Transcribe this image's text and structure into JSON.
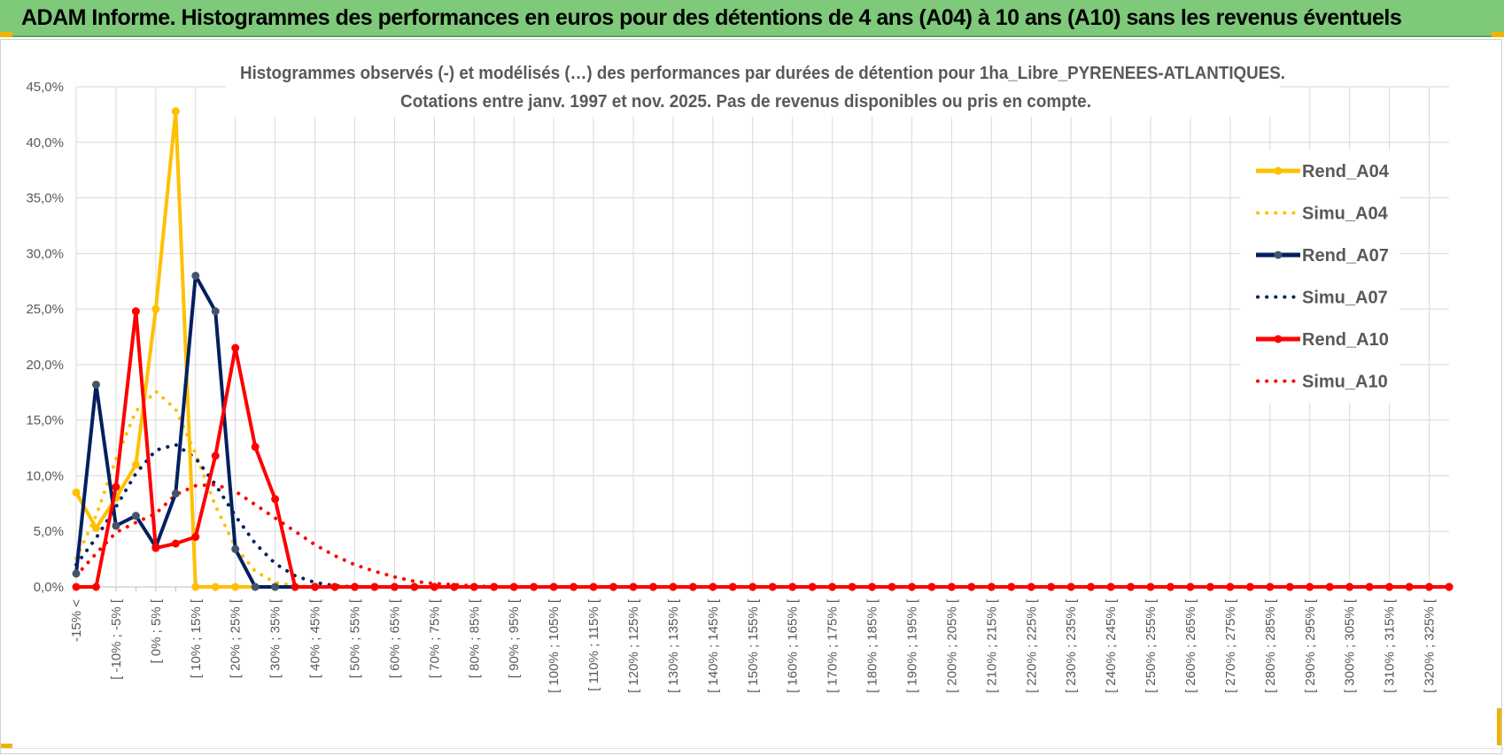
{
  "header": {
    "title": "ADAM Informe. Histogrammes des performances en euros pour des détentions de 4 ans (A04) à 10 ans (A10) sans les revenus éventuels"
  },
  "colors": {
    "banner": "#7ec97a",
    "accent": "#f0b400",
    "A04": "#ffc000",
    "A07": "#002060",
    "A10": "#ff0000"
  },
  "chart_data": {
    "type": "line",
    "title": "Histogrammes observés (-) et modélisés (…) des performances par durées de détention pour 1ha_Libre_PYRENEES-ATLANTIQUES.",
    "subtitle": "Cotations entre janv. 1997 et nov. 2025. Pas de revenus disponibles ou pris en compte.",
    "xlabel": "",
    "ylabel": "",
    "ylim": [
      0,
      45
    ],
    "y_ticks": [
      "0,0%",
      "5,0%",
      "10,0%",
      "15,0%",
      "20,0%",
      "25,0%",
      "30,0%",
      "35,0%",
      "40,0%",
      "45,0%"
    ],
    "grid": true,
    "legend_position": "right",
    "categories": [
      "-15% <",
      "",
      "[ -10% ; -5% [",
      "",
      "[ 0% ; 5% [",
      "",
      "[ 10% ; 15% [",
      "",
      "[ 20% ; 25% [",
      "",
      "[ 30% ; 35% [",
      "",
      "[ 40% ; 45% [",
      "",
      "[ 50% ; 55% [",
      "",
      "[ 60% ; 65% [",
      "",
      "[ 70% ; 75% [",
      "",
      "[ 80% ; 85% [",
      "",
      "[ 90% ; 95% [",
      "",
      "[ 100% ; 105% [",
      "",
      "[ 110% ; 115% [",
      "",
      "[ 120% ; 125% [",
      "",
      "[ 130% ; 135% [",
      "",
      "[ 140% ; 145% [",
      "",
      "[ 150% ; 155% [",
      "",
      "[ 160% ; 165% [",
      "",
      "[ 170% ; 175% [",
      "",
      "[ 180% ; 185% [",
      "",
      "[ 190% ; 195% [",
      "",
      "[ 200% ; 205% [",
      "",
      "[ 210% ; 215% [",
      "",
      "[ 220% ; 225% [",
      "",
      "[ 230% ; 235% [",
      "",
      "[ 240% ; 245% [",
      "",
      "[ 250% ; 255% [",
      "",
      "[ 260% ; 265% [",
      "",
      "[ 270% ; 275% [",
      "",
      "[ 280% ; 285% [",
      "",
      "[ 290% ; 295% [",
      "",
      "[ 300% ; 305% [",
      "",
      "[ 310% ; 315% [",
      "",
      "[ 320% ; 325% [",
      ""
    ],
    "series": [
      {
        "name": "Rend_A04",
        "style": "solid",
        "color": "#ffc000",
        "values": [
          8.5,
          5.3,
          8.0,
          11.0,
          25.0,
          42.8,
          0,
          0,
          0,
          0,
          0,
          0,
          0,
          0,
          0,
          0,
          0,
          0,
          0,
          0,
          0,
          0,
          0,
          0,
          0,
          0,
          0,
          0,
          0,
          0,
          0,
          0,
          0,
          0,
          0,
          0,
          0,
          0,
          0,
          0,
          0,
          0,
          0,
          0,
          0,
          0,
          0,
          0,
          0,
          0,
          0,
          0,
          0,
          0,
          0,
          0,
          0,
          0,
          0,
          0,
          0,
          0,
          0,
          0,
          0,
          0,
          0,
          0,
          0,
          0
        ]
      },
      {
        "name": "Simu_A04",
        "style": "dotted",
        "color": "#ffc000",
        "values": [
          2.6,
          6.4,
          11.5,
          15.8,
          17.6,
          16.0,
          12.0,
          7.3,
          3.6,
          1.4,
          0.4,
          0.1,
          0,
          0,
          0,
          0,
          0,
          0,
          0,
          0,
          0,
          0,
          0,
          0,
          0,
          0,
          0,
          0,
          0,
          0,
          0,
          0,
          0,
          0,
          0,
          0,
          0,
          0,
          0,
          0,
          0,
          0,
          0,
          0,
          0,
          0,
          0,
          0,
          0,
          0,
          0,
          0,
          0,
          0,
          0,
          0,
          0,
          0,
          0,
          0,
          0,
          0,
          0,
          0,
          0,
          0,
          0,
          0,
          0,
          0
        ]
      },
      {
        "name": "Rend_A07",
        "style": "solid",
        "color": "#002060",
        "values": [
          1.2,
          18.2,
          5.5,
          6.4,
          3.6,
          8.4,
          28.0,
          24.8,
          3.4,
          0,
          0,
          0,
          0,
          0,
          0,
          0,
          0,
          0,
          0,
          0,
          0,
          0,
          0,
          0,
          0,
          0,
          0,
          0,
          0,
          0,
          0,
          0,
          0,
          0,
          0,
          0,
          0,
          0,
          0,
          0,
          0,
          0,
          0,
          0,
          0,
          0,
          0,
          0,
          0,
          0,
          0,
          0,
          0,
          0,
          0,
          0,
          0,
          0,
          0,
          0,
          0,
          0,
          0,
          0,
          0,
          0,
          0,
          0,
          0,
          0
        ]
      },
      {
        "name": "Simu_A07",
        "style": "dotted",
        "color": "#002060",
        "values": [
          2.0,
          4.4,
          7.2,
          10.2,
          12.3,
          12.8,
          11.6,
          9.2,
          6.4,
          3.9,
          2.1,
          1.0,
          0.4,
          0.1,
          0,
          0,
          0,
          0,
          0,
          0,
          0,
          0,
          0,
          0,
          0,
          0,
          0,
          0,
          0,
          0,
          0,
          0,
          0,
          0,
          0,
          0,
          0,
          0,
          0,
          0,
          0,
          0,
          0,
          0,
          0,
          0,
          0,
          0,
          0,
          0,
          0,
          0,
          0,
          0,
          0,
          0,
          0,
          0,
          0,
          0,
          0,
          0,
          0,
          0,
          0,
          0,
          0,
          0,
          0,
          0
        ]
      },
      {
        "name": "Rend_A10",
        "style": "solid",
        "color": "#ff0000",
        "values": [
          0,
          0,
          9.0,
          24.8,
          3.5,
          3.9,
          4.5,
          11.8,
          21.5,
          12.6,
          7.9,
          0,
          0,
          0,
          0,
          0,
          0,
          0,
          0,
          0,
          0,
          0,
          0,
          0,
          0,
          0,
          0,
          0,
          0,
          0,
          0,
          0,
          0,
          0,
          0,
          0,
          0,
          0,
          0,
          0,
          0,
          0,
          0,
          0,
          0,
          0,
          0,
          0,
          0,
          0,
          0,
          0,
          0,
          0,
          0,
          0,
          0,
          0,
          0,
          0,
          0,
          0,
          0,
          0,
          0,
          0,
          0,
          0,
          0,
          0
        ]
      },
      {
        "name": "Simu_A10",
        "style": "dotted",
        "color": "#ff0000",
        "values": [
          1.0,
          3.0,
          4.9,
          5.8,
          6.6,
          8.3,
          9.1,
          9.2,
          8.6,
          7.4,
          6.2,
          5.0,
          3.8,
          2.8,
          2.0,
          1.4,
          0.9,
          0.5,
          0.3,
          0.2,
          0.1,
          0,
          0,
          0,
          0,
          0,
          0,
          0,
          0,
          0,
          0,
          0,
          0,
          0,
          0,
          0,
          0,
          0,
          0,
          0,
          0,
          0,
          0,
          0,
          0,
          0,
          0,
          0,
          0,
          0,
          0,
          0,
          0,
          0,
          0,
          0,
          0,
          0,
          0,
          0,
          0,
          0,
          0,
          0,
          0,
          0,
          0,
          0,
          0,
          0
        ]
      }
    ]
  }
}
